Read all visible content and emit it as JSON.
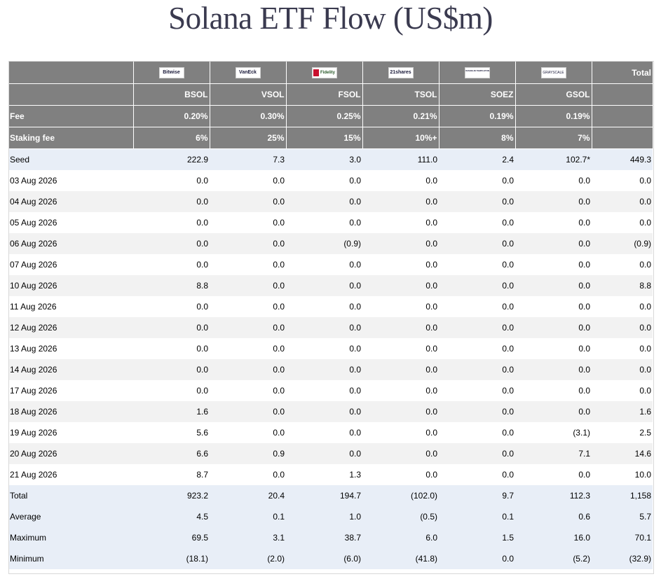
{
  "title": "Solana ETF Flow (US$m)",
  "colors": {
    "header_bg": "#808080",
    "band_bg": "#e8eef7",
    "negative": "#e00000",
    "zero": "#b9b9b9"
  },
  "issuers": [
    {
      "logo": "bitwise-logo",
      "text": "Bitwise"
    },
    {
      "logo": "vaneck-logo",
      "text": "VanEck"
    },
    {
      "logo": "fidelity-logo",
      "text": "Fidelity"
    },
    {
      "logo": "21shares-logo",
      "text": "21shares"
    },
    {
      "logo": "franklin-templeton-logo",
      "text": "FRANKLIN TEMPLETON"
    },
    {
      "logo": "grayscale-logo",
      "text": "GRAYSCALE"
    }
  ],
  "header": {
    "total_label": "Total",
    "tickers": [
      "BSOL",
      "VSOL",
      "FSOL",
      "TSOL",
      "SOEZ",
      "GSOL"
    ],
    "fee_label": "Fee",
    "fees": [
      "0.20%",
      "0.30%",
      "0.25%",
      "0.21%",
      "0.19%",
      "0.19%"
    ],
    "staking_label": "Staking fee",
    "staking_fees": [
      "6%",
      "25%",
      "15%",
      "10%+",
      "8%",
      "7%"
    ]
  },
  "seed": {
    "label": "Seed",
    "values": [
      "222.9",
      "7.3",
      "3.0",
      "111.0",
      "2.4",
      "102.7*",
      "449.3"
    ]
  },
  "days": [
    {
      "date": "03 Aug 2026",
      "values": [
        "0.0",
        "0.0",
        "0.0",
        "0.0",
        "0.0",
        "0.0",
        "0.0"
      ]
    },
    {
      "date": "04 Aug 2026",
      "values": [
        "0.0",
        "0.0",
        "0.0",
        "0.0",
        "0.0",
        "0.0",
        "0.0"
      ]
    },
    {
      "date": "05 Aug 2026",
      "values": [
        "0.0",
        "0.0",
        "0.0",
        "0.0",
        "0.0",
        "0.0",
        "0.0"
      ]
    },
    {
      "date": "06 Aug 2026",
      "values": [
        "0.0",
        "0.0",
        "(0.9)",
        "0.0",
        "0.0",
        "0.0",
        "(0.9)"
      ]
    },
    {
      "date": "07 Aug 2026",
      "values": [
        "0.0",
        "0.0",
        "0.0",
        "0.0",
        "0.0",
        "0.0",
        "0.0"
      ]
    },
    {
      "date": "10 Aug 2026",
      "values": [
        "8.8",
        "0.0",
        "0.0",
        "0.0",
        "0.0",
        "0.0",
        "8.8"
      ]
    },
    {
      "date": "11 Aug 2026",
      "values": [
        "0.0",
        "0.0",
        "0.0",
        "0.0",
        "0.0",
        "0.0",
        "0.0"
      ]
    },
    {
      "date": "12 Aug 2026",
      "values": [
        "0.0",
        "0.0",
        "0.0",
        "0.0",
        "0.0",
        "0.0",
        "0.0"
      ]
    },
    {
      "date": "13 Aug 2026",
      "values": [
        "0.0",
        "0.0",
        "0.0",
        "0.0",
        "0.0",
        "0.0",
        "0.0"
      ]
    },
    {
      "date": "14 Aug 2026",
      "values": [
        "0.0",
        "0.0",
        "0.0",
        "0.0",
        "0.0",
        "0.0",
        "0.0"
      ]
    },
    {
      "date": "17 Aug 2026",
      "values": [
        "0.0",
        "0.0",
        "0.0",
        "0.0",
        "0.0",
        "0.0",
        "0.0"
      ]
    },
    {
      "date": "18 Aug 2026",
      "values": [
        "1.6",
        "0.0",
        "0.0",
        "0.0",
        "0.0",
        "0.0",
        "1.6"
      ]
    },
    {
      "date": "19 Aug 2026",
      "values": [
        "5.6",
        "0.0",
        "0.0",
        "0.0",
        "0.0",
        "(3.1)",
        "2.5"
      ]
    },
    {
      "date": "20 Aug 2026",
      "values": [
        "6.6",
        "0.9",
        "0.0",
        "0.0",
        "0.0",
        "7.1",
        "14.6"
      ]
    },
    {
      "date": "21 Aug 2026",
      "values": [
        "8.7",
        "0.0",
        "1.3",
        "0.0",
        "0.0",
        "0.0",
        "10.0"
      ]
    }
  ],
  "summary": [
    {
      "label": "Total",
      "values": [
        "923.2",
        "20.4",
        "194.7",
        "(102.0)",
        "9.7",
        "112.3",
        "1,158"
      ]
    },
    {
      "label": "Average",
      "values": [
        "4.5",
        "0.1",
        "1.0",
        "(0.5)",
        "0.1",
        "0.6",
        "5.7"
      ]
    },
    {
      "label": "Maximum",
      "values": [
        "69.5",
        "3.1",
        "38.7",
        "6.0",
        "1.5",
        "16.0",
        "70.1"
      ]
    },
    {
      "label": "Minimum",
      "values": [
        "(18.1)",
        "(2.0)",
        "(6.0)",
        "(41.8)",
        "0.0",
        "(5.2)",
        "(32.9)"
      ]
    }
  ]
}
